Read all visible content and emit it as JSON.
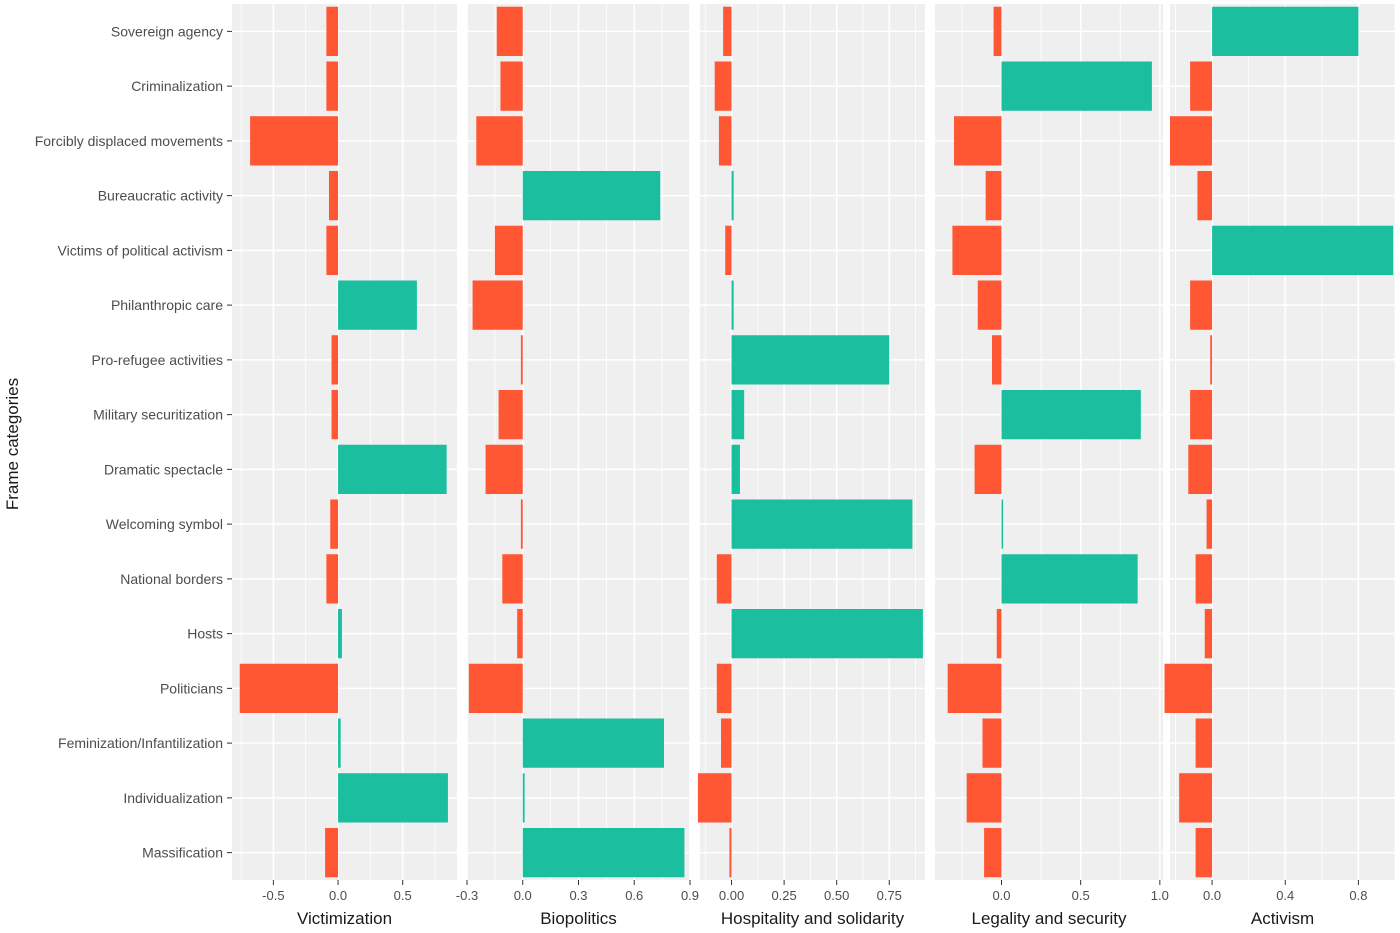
{
  "chart_data": {
    "type": "bar",
    "orientation": "horizontal",
    "ylabel": "Frame categories",
    "categories": [
      "Sovereign agency",
      "Criminalization",
      "Forcibly displaced movements",
      "Bureaucratic activity",
      "Victims of political activism",
      "Philanthropic care",
      "Pro-refugee activities",
      "Military securitization",
      "Dramatic spectacle",
      "Welcoming symbol",
      "National borders",
      "Hosts",
      "Politicians",
      "Feminization/Infantilization",
      "Individualization",
      "Massification"
    ],
    "colors": {
      "positive": "#1bbf9f",
      "negative": "#ff5733",
      "panel": "#efefef",
      "grid": "#ffffff"
    },
    "grid": true,
    "legend": "none",
    "panels": [
      {
        "xlabel": "Victimization",
        "xlim": [
          -0.82,
          0.92
        ],
        "ticks": [
          -0.5,
          0.0,
          0.5
        ],
        "tick_labels": [
          "-0.5",
          "0.0",
          "0.5"
        ],
        "values": [
          -0.09,
          -0.09,
          -0.68,
          -0.07,
          -0.09,
          0.61,
          -0.05,
          -0.05,
          0.84,
          -0.06,
          -0.09,
          0.03,
          -0.76,
          0.02,
          0.85,
          -0.1
        ]
      },
      {
        "xlabel": "Biopolitics",
        "xlim": [
          -0.3,
          0.9
        ],
        "ticks": [
          -0.3,
          0.0,
          0.3,
          0.6,
          0.9
        ],
        "tick_labels": [
          "-0.3",
          "0.0",
          "0.3",
          "0.6",
          "0.9"
        ],
        "values": [
          -0.14,
          -0.12,
          -0.25,
          0.74,
          -0.15,
          -0.27,
          -0.01,
          -0.13,
          -0.2,
          -0.01,
          -0.11,
          -0.03,
          -0.29,
          0.76,
          0.01,
          0.87
        ]
      },
      {
        "xlabel": "Hospitality and solidarity",
        "xlim": [
          -0.15,
          0.92
        ],
        "ticks": [
          0.0,
          0.25,
          0.5,
          0.75
        ],
        "tick_labels": [
          "0.00",
          "0.25",
          "0.50",
          "0.75"
        ],
        "values": [
          -0.04,
          -0.08,
          -0.06,
          0.01,
          -0.03,
          0.01,
          0.75,
          0.06,
          0.04,
          0.86,
          -0.07,
          0.91,
          -0.07,
          -0.05,
          -0.16,
          -0.01
        ]
      },
      {
        "xlabel": "Legality and security",
        "xlim": [
          -0.42,
          1.02
        ],
        "ticks": [
          0.0,
          0.5,
          1.0
        ],
        "tick_labels": [
          "0.0",
          "0.5",
          "1.0"
        ],
        "values": [
          -0.05,
          0.95,
          -0.3,
          -0.1,
          -0.31,
          -0.15,
          -0.06,
          0.88,
          -0.17,
          0.01,
          0.86,
          -0.03,
          -0.34,
          -0.12,
          -0.22,
          -0.11
        ]
      },
      {
        "xlabel": "Activism",
        "xlim": [
          -0.23,
          1.0
        ],
        "ticks": [
          0.0,
          0.4,
          0.8
        ],
        "tick_labels": [
          "0.0",
          "0.4",
          "0.8"
        ],
        "values": [
          0.8,
          -0.12,
          -0.23,
          -0.08,
          0.99,
          -0.12,
          -0.01,
          -0.12,
          -0.13,
          -0.03,
          -0.09,
          -0.04,
          -0.26,
          -0.09,
          -0.18,
          -0.09
        ]
      }
    ]
  }
}
